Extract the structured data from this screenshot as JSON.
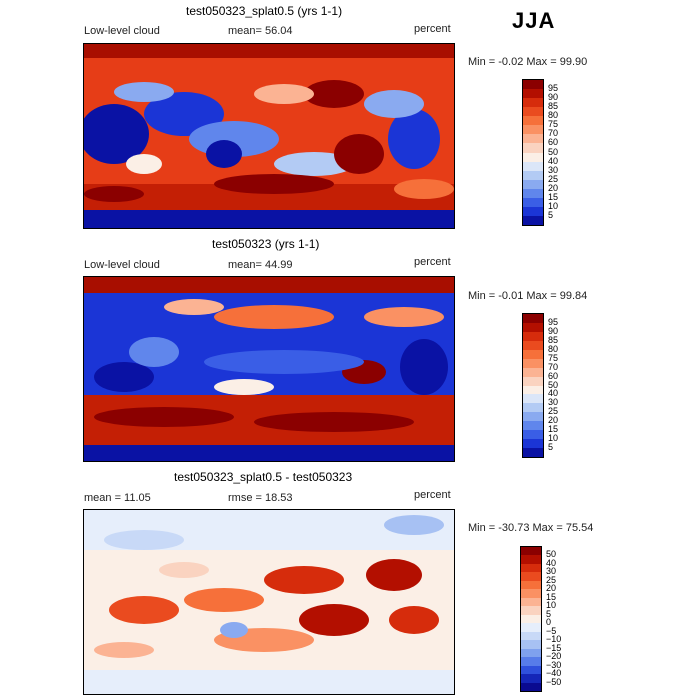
{
  "season": "JJA",
  "panels": [
    {
      "title": "test050323_splat0.5 (yrs 1-1)",
      "left_label": "Low-level cloud",
      "center_label": "mean=  56.04",
      "units": "percent",
      "minmax": "Min =   -0.02 Max =   99.90",
      "colorbar_labels": [
        "95",
        "90",
        "85",
        "80",
        "75",
        "70",
        "60",
        "50",
        "40",
        "30",
        "25",
        "20",
        "15",
        "10",
        "5"
      ],
      "colorbar_colors": [
        "#8b0000",
        "#b30f00",
        "#d62c0c",
        "#ea4b1f",
        "#f6703a",
        "#fa9163",
        "#fbb393",
        "#fad3c0",
        "#fbefe6",
        "#dbe6f8",
        "#b3cbf4",
        "#8aaaf0",
        "#6086ec",
        "#3a5ee6",
        "#1b35d6",
        "#0a12a4"
      ]
    },
    {
      "title": "test050323 (yrs 1-1)",
      "left_label": "Low-level cloud",
      "center_label": "mean=  44.99",
      "units": "percent",
      "minmax": "Min =   -0.01 Max =   99.84",
      "colorbar_labels": [
        "95",
        "90",
        "85",
        "80",
        "75",
        "70",
        "60",
        "50",
        "40",
        "30",
        "25",
        "20",
        "15",
        "10",
        "5"
      ],
      "colorbar_colors": [
        "#8b0000",
        "#b30f00",
        "#d62c0c",
        "#ea4b1f",
        "#f6703a",
        "#fa9163",
        "#fbb393",
        "#fad3c0",
        "#fbefe6",
        "#dbe6f8",
        "#b3cbf4",
        "#8aaaf0",
        "#6086ec",
        "#3a5ee6",
        "#1b35d6",
        "#0a12a4"
      ]
    },
    {
      "title": "test050323_splat0.5 - test050323",
      "left_label": "mean =   11.05",
      "center_label": "rmse =   18.53",
      "units": "percent",
      "minmax": "Min =  -30.73 Max =   75.54",
      "colorbar_labels": [
        "50",
        "40",
        "30",
        "25",
        "20",
        "15",
        "10",
        "5",
        "0",
        "−5",
        "−10",
        "−15",
        "−20",
        "−30",
        "−40",
        "−50"
      ],
      "colorbar_colors": [
        "#8b0000",
        "#b30f00",
        "#d62c0c",
        "#ea4b1f",
        "#f6703a",
        "#fa9163",
        "#fbb393",
        "#fad3c0",
        "#fbefe6",
        "#e6eefb",
        "#c8d9f7",
        "#a7c1f3",
        "#7fa1ee",
        "#577ce9",
        "#2f50dc",
        "#1526b8",
        "#0a0a90"
      ]
    }
  ]
}
